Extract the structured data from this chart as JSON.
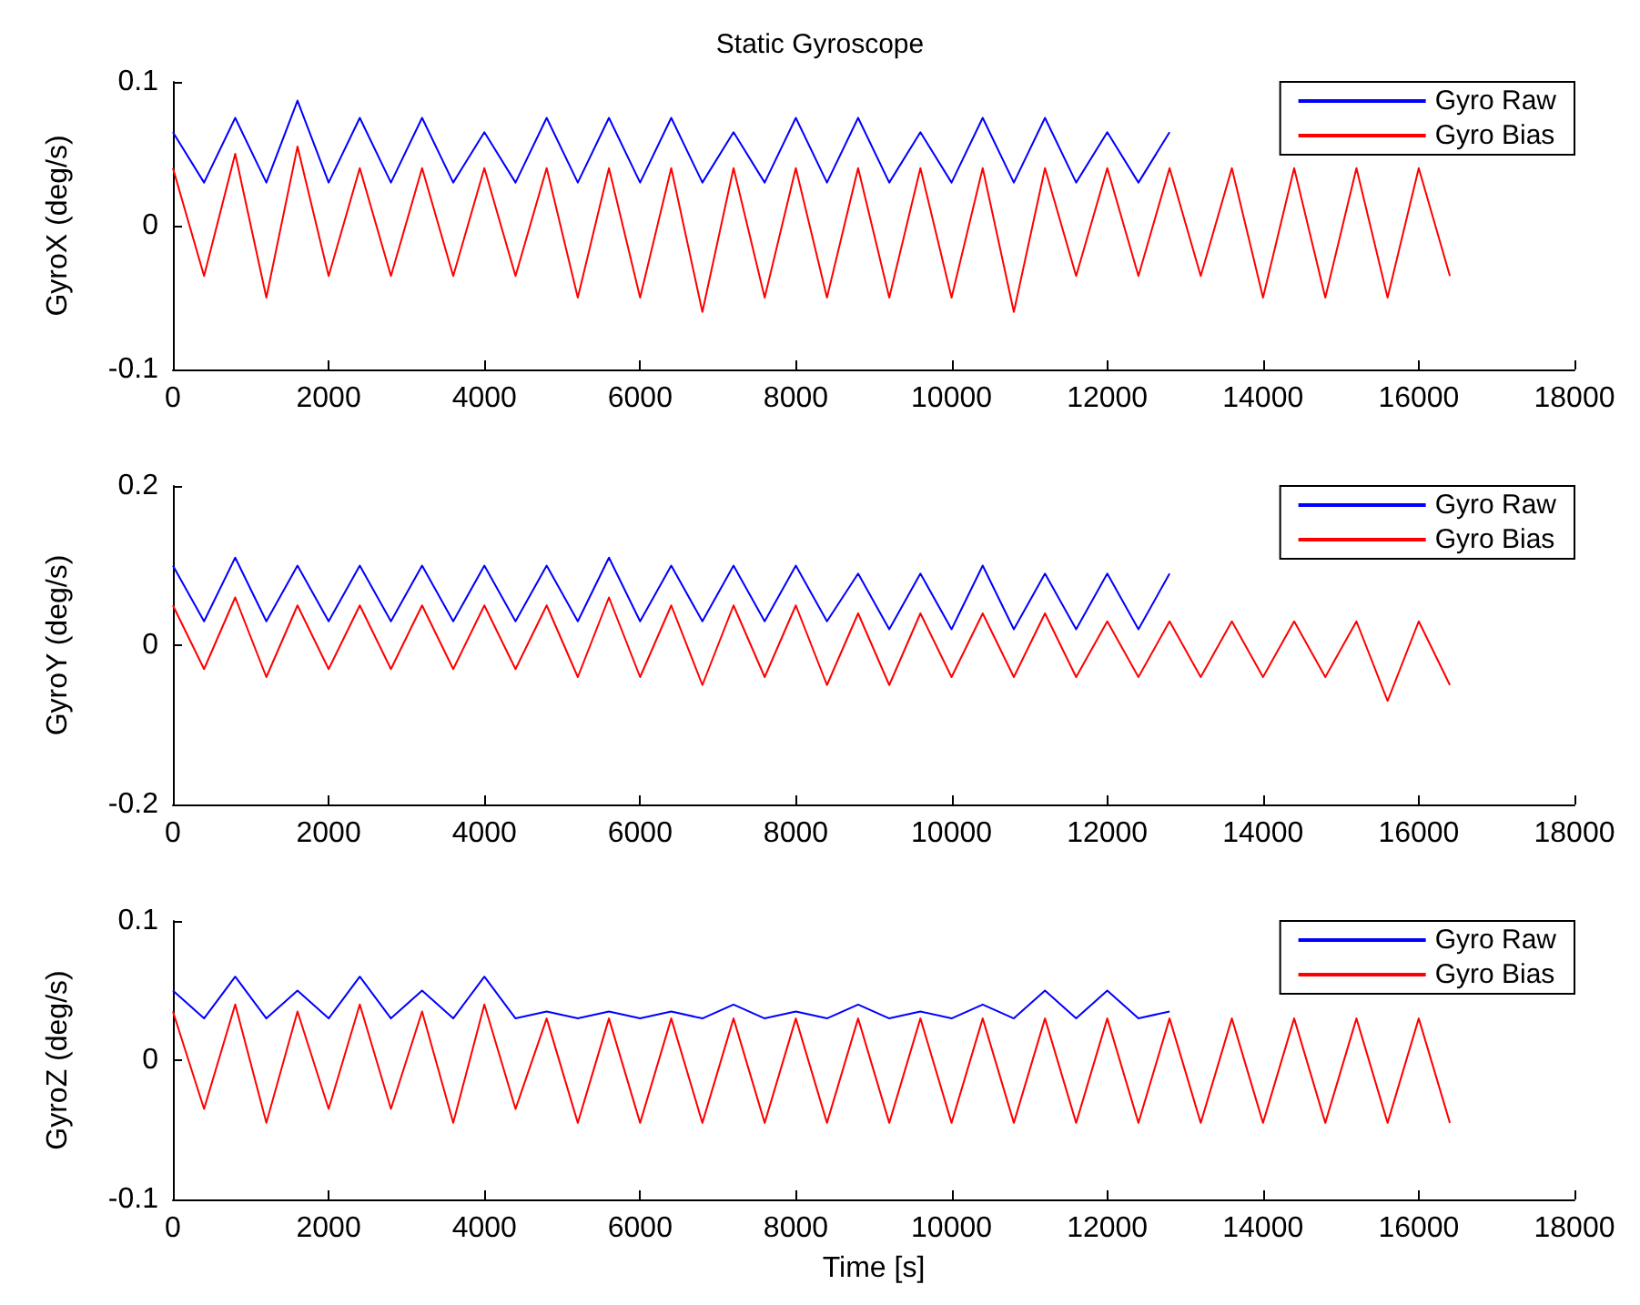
{
  "chart_data": [
    {
      "type": "line",
      "title": "Static Gyroscope",
      "ylabel": "GyroX (deg/s)",
      "x": [
        0,
        400,
        800,
        1200,
        1600,
        2000,
        2400,
        2800,
        3200,
        3600,
        4000,
        4400,
        4800,
        5200,
        5600,
        6000,
        6400,
        6800,
        7200,
        7600,
        8000,
        8400,
        8800,
        9200,
        9600,
        10000,
        10400,
        10800,
        11200,
        11600,
        12000,
        12400,
        12800,
        13200,
        13600,
        14000,
        14400,
        14800,
        15200,
        15600,
        16000,
        16400
      ],
      "series": [
        {
          "name": "Gyro Raw",
          "color": "#0000ff",
          "values": [
            0.065,
            0.03,
            0.075,
            0.03,
            0.087,
            0.03,
            0.075,
            0.03,
            0.075,
            0.03,
            0.065,
            0.03,
            0.075,
            0.03,
            0.075,
            0.03,
            0.075,
            0.03,
            0.065,
            0.03,
            0.075,
            0.03,
            0.075,
            0.03,
            0.065,
            0.03,
            0.075,
            0.03,
            0.075,
            0.03,
            0.065,
            0.03,
            0.065,
            null,
            null,
            null,
            null,
            null,
            null,
            null,
            null,
            null
          ]
        },
        {
          "name": "Gyro Bias",
          "color": "#ff0000",
          "values": [
            0.04,
            -0.035,
            0.05,
            -0.05,
            0.055,
            -0.035,
            0.04,
            -0.035,
            0.04,
            -0.035,
            0.04,
            -0.035,
            0.04,
            -0.05,
            0.04,
            -0.05,
            0.04,
            -0.06,
            0.04,
            -0.05,
            0.04,
            -0.05,
            0.04,
            -0.05,
            0.04,
            -0.05,
            0.04,
            -0.06,
            0.04,
            -0.035,
            0.04,
            -0.035,
            0.04,
            -0.035,
            0.04,
            -0.05,
            0.04,
            -0.05,
            0.04,
            -0.05,
            0.04,
            -0.035
          ]
        }
      ],
      "xlim": [
        0,
        18000
      ],
      "xticks": [
        0,
        2000,
        4000,
        6000,
        8000,
        10000,
        12000,
        14000,
        16000,
        18000
      ],
      "ylim": [
        -0.1,
        0.1
      ],
      "yticks": [
        -0.1,
        0,
        0.1
      ],
      "legend": "top right",
      "grid": false,
      "marker": "none",
      "line_style": "solid"
    },
    {
      "type": "line",
      "ylabel": "GyroY (deg/s)",
      "x": [
        0,
        400,
        800,
        1200,
        1600,
        2000,
        2400,
        2800,
        3200,
        3600,
        4000,
        4400,
        4800,
        5200,
        5600,
        6000,
        6400,
        6800,
        7200,
        7600,
        8000,
        8400,
        8800,
        9200,
        9600,
        10000,
        10400,
        10800,
        11200,
        11600,
        12000,
        12400,
        12800,
        13200,
        13600,
        14000,
        14400,
        14800,
        15200,
        15600,
        16000,
        16400
      ],
      "series": [
        {
          "name": "Gyro Raw",
          "color": "#0000ff",
          "values": [
            0.1,
            0.03,
            0.11,
            0.03,
            0.1,
            0.03,
            0.1,
            0.03,
            0.1,
            0.03,
            0.1,
            0.03,
            0.1,
            0.03,
            0.11,
            0.03,
            0.1,
            0.03,
            0.1,
            0.03,
            0.1,
            0.03,
            0.09,
            0.02,
            0.09,
            0.02,
            0.1,
            0.02,
            0.09,
            0.02,
            0.09,
            0.02,
            0.09,
            null,
            null,
            null,
            null,
            null,
            null,
            null,
            null,
            null
          ]
        },
        {
          "name": "Gyro Bias",
          "color": "#ff0000",
          "values": [
            0.05,
            -0.03,
            0.06,
            -0.04,
            0.05,
            -0.03,
            0.05,
            -0.03,
            0.05,
            -0.03,
            0.05,
            -0.03,
            0.05,
            -0.04,
            0.06,
            -0.04,
            0.05,
            -0.05,
            0.05,
            -0.04,
            0.05,
            -0.05,
            0.04,
            -0.05,
            0.04,
            -0.04,
            0.04,
            -0.04,
            0.04,
            -0.04,
            0.03,
            -0.04,
            0.03,
            -0.04,
            0.03,
            -0.04,
            0.03,
            -0.04,
            0.03,
            -0.07,
            0.03,
            -0.05
          ]
        }
      ],
      "xlim": [
        0,
        18000
      ],
      "xticks": [
        0,
        2000,
        4000,
        6000,
        8000,
        10000,
        12000,
        14000,
        16000,
        18000
      ],
      "ylim": [
        -0.2,
        0.2
      ],
      "yticks": [
        -0.2,
        0,
        0.2
      ],
      "legend": "top right",
      "grid": false,
      "marker": "none",
      "line_style": "solid"
    },
    {
      "type": "line",
      "xlabel": "Time [s]",
      "ylabel": "GyroZ (deg/s)",
      "x": [
        0,
        400,
        800,
        1200,
        1600,
        2000,
        2400,
        2800,
        3200,
        3600,
        4000,
        4400,
        4800,
        5200,
        5600,
        6000,
        6400,
        6800,
        7200,
        7600,
        8000,
        8400,
        8800,
        9200,
        9600,
        10000,
        10400,
        10800,
        11200,
        11600,
        12000,
        12400,
        12800,
        13200,
        13600,
        14000,
        14400,
        14800,
        15200,
        15600,
        16000,
        16400
      ],
      "series": [
        {
          "name": "Gyro Raw",
          "color": "#0000ff",
          "values": [
            0.05,
            0.03,
            0.06,
            0.03,
            0.05,
            0.03,
            0.06,
            0.03,
            0.05,
            0.03,
            0.06,
            0.03,
            0.035,
            0.03,
            0.035,
            0.03,
            0.035,
            0.03,
            0.04,
            0.03,
            0.035,
            0.03,
            0.04,
            0.03,
            0.035,
            0.03,
            0.04,
            0.03,
            0.05,
            0.03,
            0.05,
            0.03,
            0.035,
            null,
            null,
            null,
            null,
            null,
            null,
            null,
            null,
            null
          ]
        },
        {
          "name": "Gyro Bias",
          "color": "#ff0000",
          "values": [
            0.035,
            -0.035,
            0.04,
            -0.045,
            0.035,
            -0.035,
            0.04,
            -0.035,
            0.035,
            -0.045,
            0.04,
            -0.035,
            0.03,
            -0.045,
            0.03,
            -0.045,
            0.03,
            -0.045,
            0.03,
            -0.045,
            0.03,
            -0.045,
            0.03,
            -0.045,
            0.03,
            -0.045,
            0.03,
            -0.045,
            0.03,
            -0.045,
            0.03,
            -0.045,
            0.03,
            -0.045,
            0.03,
            -0.045,
            0.03,
            -0.045,
            0.03,
            -0.045,
            0.03,
            -0.045
          ]
        }
      ],
      "xlim": [
        0,
        18000
      ],
      "xticks": [
        0,
        2000,
        4000,
        6000,
        8000,
        10000,
        12000,
        14000,
        16000,
        18000
      ],
      "ylim": [
        -0.1,
        0.1
      ],
      "yticks": [
        -0.1,
        0,
        0.1
      ],
      "legend": "top right",
      "grid": false,
      "marker": "none",
      "line_style": "solid"
    }
  ]
}
